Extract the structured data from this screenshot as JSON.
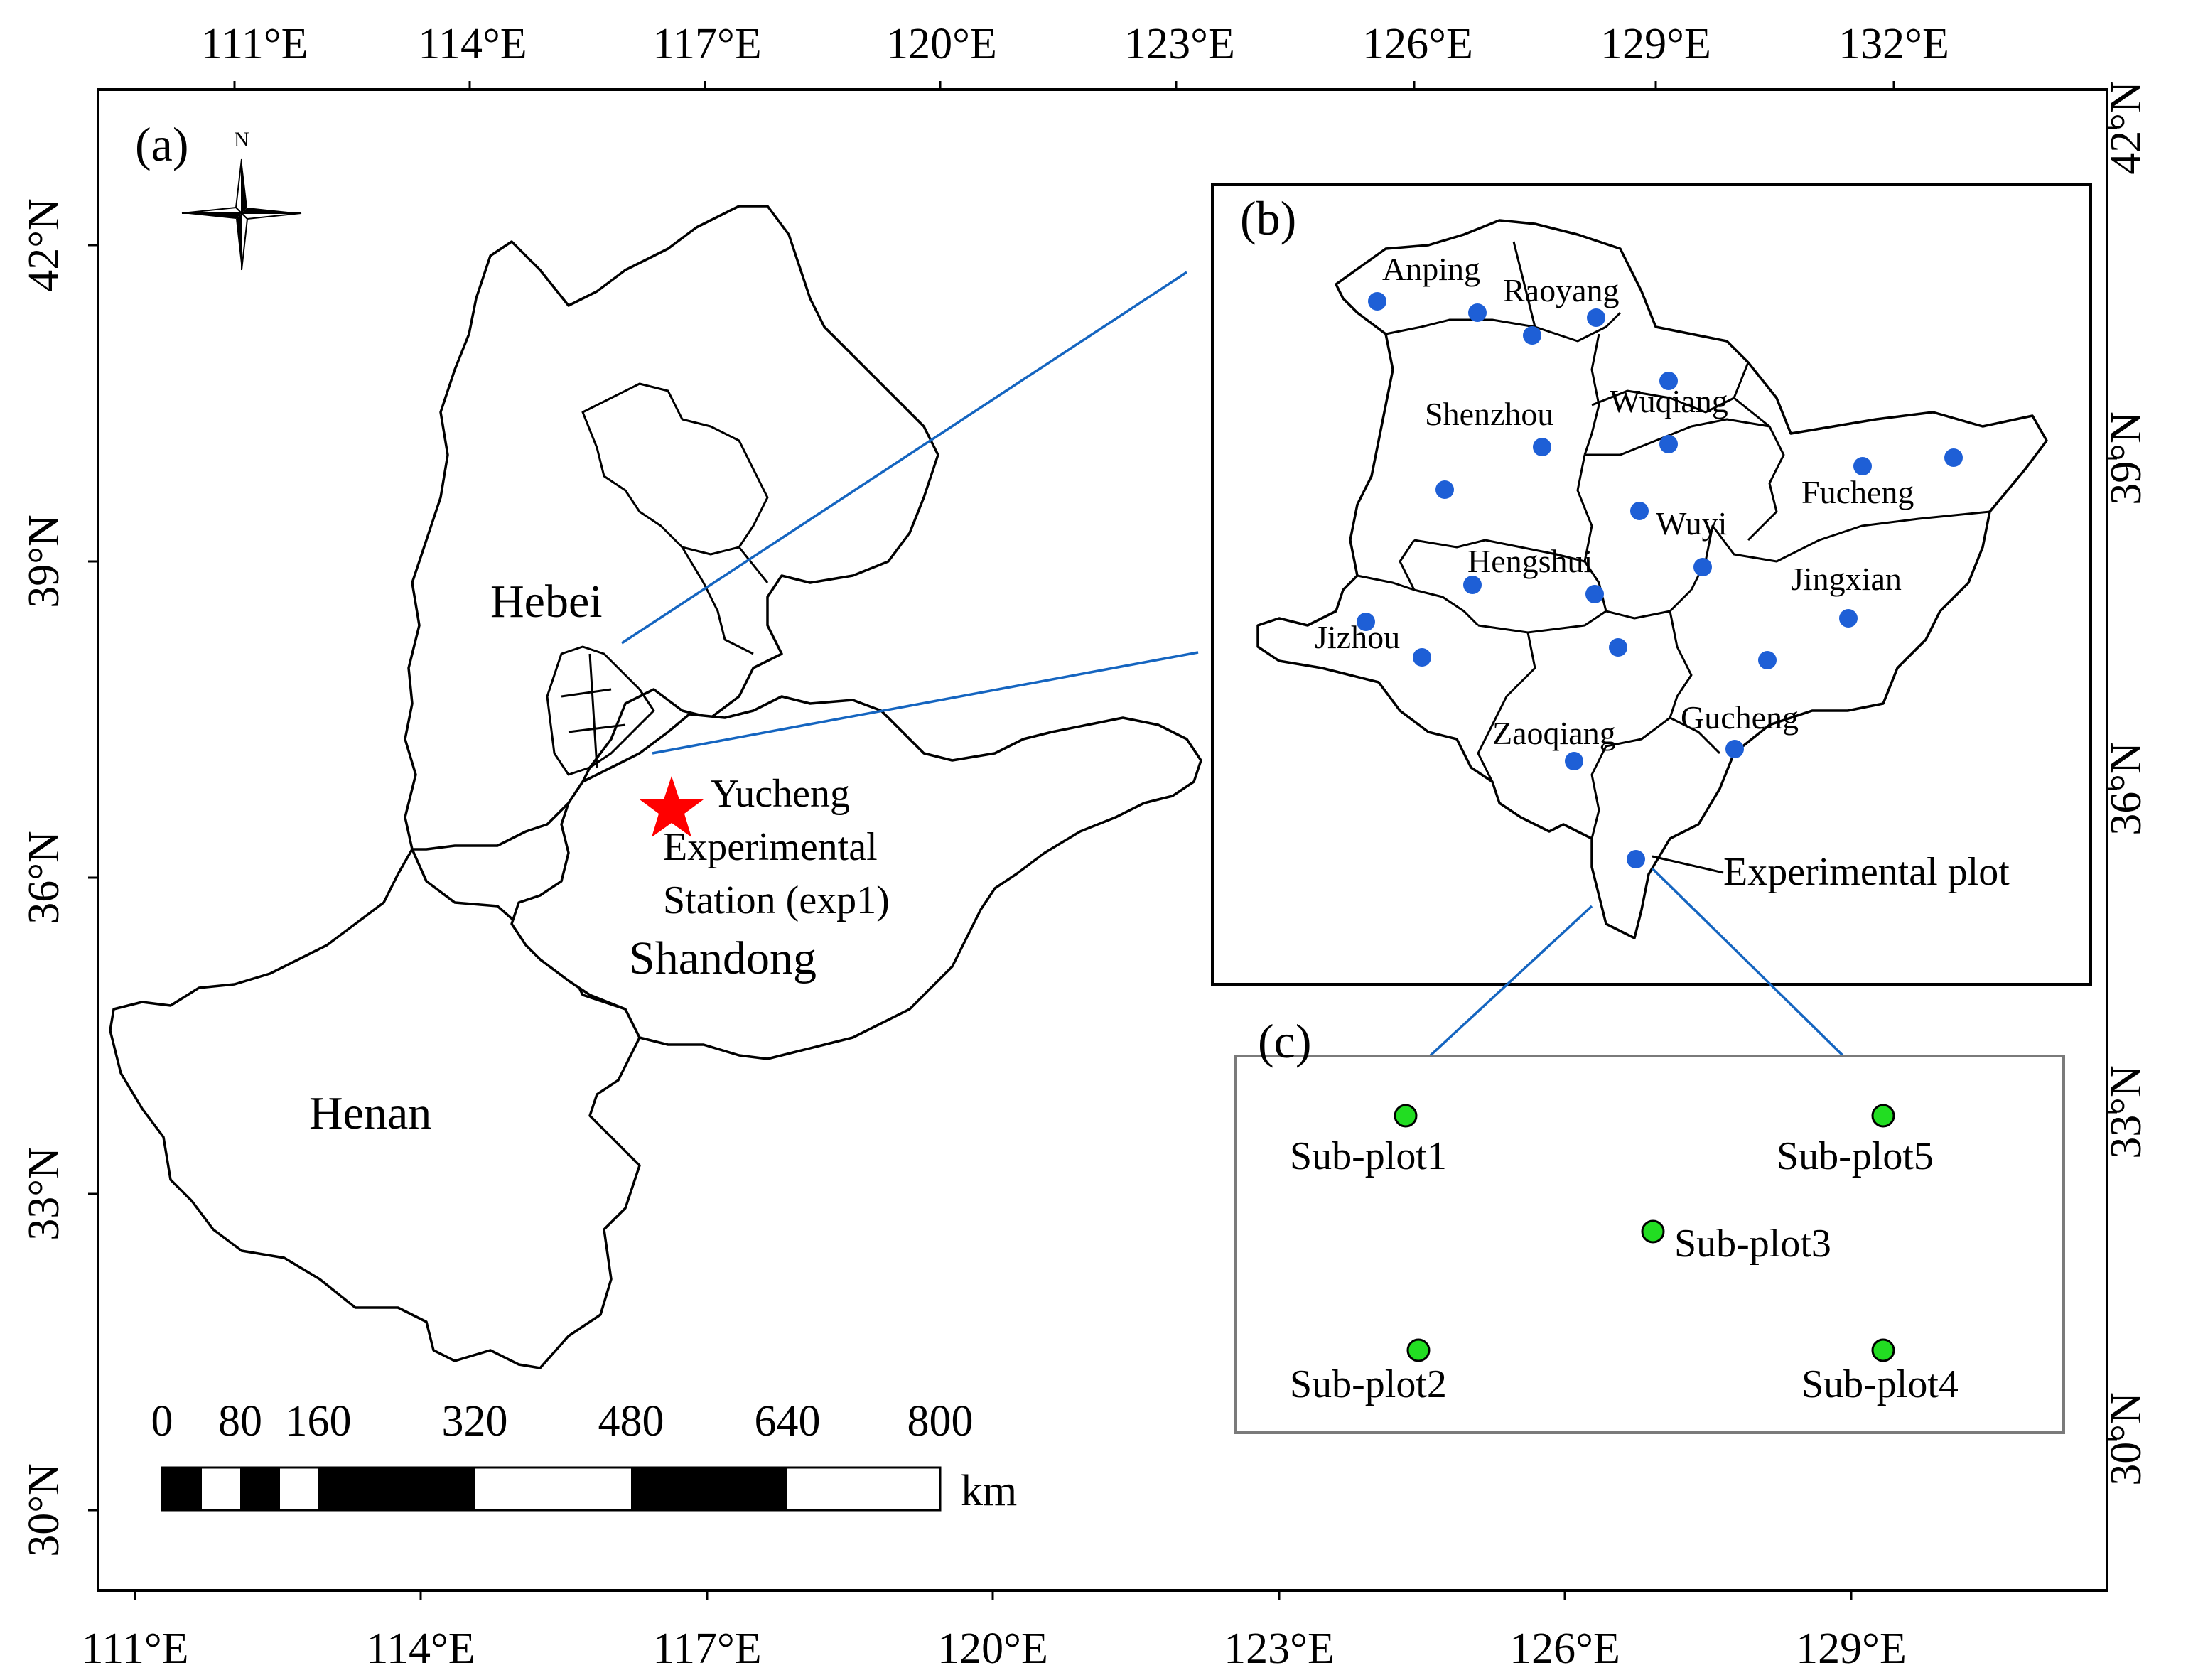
{
  "figure": {
    "top_lon_labels": [
      "111°E",
      "114°E",
      "117°E",
      "120°E",
      "123°E",
      "126°E",
      "129°E",
      "132°E"
    ],
    "bottom_lon_labels": [
      "111°E",
      "114°E",
      "117°E",
      "120°E",
      "123°E",
      "126°E",
      "129°E"
    ],
    "left_lat_labels": [
      "42°N",
      "39°N",
      "36°N",
      "33°N",
      "30°N"
    ],
    "right_lat_labels": [
      "42°N",
      "39°N",
      "36°N",
      "33°N",
      "30°N"
    ]
  },
  "panel_a": {
    "label": "(a)",
    "north_letter": "N",
    "provinces": [
      "Hebei",
      "Shandong",
      "Henan"
    ],
    "station": {
      "lines": [
        "Yucheng",
        "Experimental",
        "Station (exp1)"
      ],
      "marker_color": "#ff0000"
    },
    "scale_bar": {
      "ticks": [
        "0",
        "80",
        "160",
        "320",
        "480",
        "640",
        "800"
      ],
      "unit": "km"
    }
  },
  "panel_b": {
    "label": "(b)",
    "counties": [
      "Anping",
      "Raoyang",
      "Wuqiang",
      "Shenzhou",
      "Fucheng",
      "Wuyi",
      "Hengshui",
      "Jingxian",
      "Jizhou",
      "Zaoqiang",
      "Gucheng"
    ],
    "plot_label": "Experimental plot",
    "point_color": "#1e5fd6"
  },
  "panel_c": {
    "label": "(c)",
    "subplots": [
      "Sub-plot1",
      "Sub-plot5",
      "Sub-plot3",
      "Sub-plot2",
      "Sub-plot4"
    ],
    "point_color": "#22dd22"
  },
  "callout_color": "#1565c0"
}
